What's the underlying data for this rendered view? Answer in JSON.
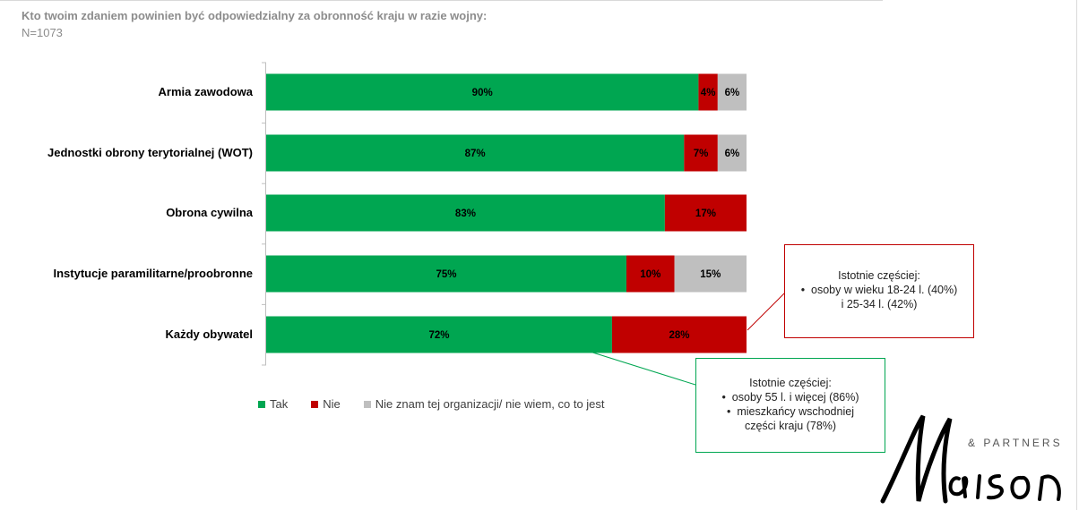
{
  "header": {
    "title": "Kto twoim zdaniem powinien być odpowiedzialny za obronność kraju w razie wojny:",
    "sample": "N=1073"
  },
  "colors": {
    "tak": "#00a651",
    "nie": "#c00000",
    "dont_know": "#bfbfbf"
  },
  "chart_data": {
    "type": "bar",
    "orientation": "horizontal",
    "stacked": true,
    "categories": [
      "Armia zawodowa",
      "Jednostki obrony terytorialnej (WOT)",
      "Obrona cywilna",
      "Instytucje paramilitarne/proobronne",
      "Każdy obywatel"
    ],
    "series": [
      {
        "name": "Tak",
        "color": "#00a651",
        "values": [
          90,
          87,
          83,
          75,
          72
        ],
        "labels": [
          "90%",
          "87%",
          "83%",
          "75%",
          "72%"
        ]
      },
      {
        "name": "Nie",
        "color": "#c00000",
        "values": [
          4,
          7,
          17,
          10,
          28
        ],
        "labels": [
          "4%",
          "7%",
          "17%",
          "10%",
          "28%"
        ]
      },
      {
        "name": "Nie znam tej organizacji/ nie wiem, co to jest",
        "color": "#bfbfbf",
        "values": [
          6,
          6,
          0,
          15,
          0
        ],
        "labels": [
          "6%",
          "6%",
          "",
          "15%",
          ""
        ]
      }
    ],
    "xlim": [
      0,
      100
    ],
    "legend_position": "bottom",
    "grid": false
  },
  "callouts": {
    "red": {
      "heading": "Istotnie częściej:",
      "items": [
        "osoby w wieku 18-24 l. (40%)"
      ],
      "continuation": "i 25-34 l. (42%)"
    },
    "green": {
      "heading": "Istotnie częściej:",
      "items": [
        "osoby 55 l. i więcej (86%)",
        "mieszkańcy wschodniej"
      ],
      "continuation": "części kraju (78%)"
    }
  },
  "brand": {
    "partners": "& PARTNERS"
  }
}
